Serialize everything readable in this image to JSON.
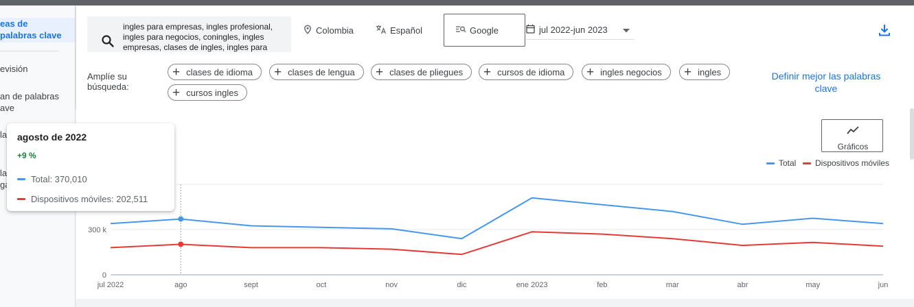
{
  "sidebar": {
    "items": [
      {
        "label": "eas de palabras clave",
        "active": true
      },
      {
        "label": "evisión",
        "active": false
      },
      {
        "label": "an de palabras ave",
        "active": false
      },
      {
        "label": "la",
        "active": false
      },
      {
        "label": "la ga",
        "active": false
      }
    ]
  },
  "search": {
    "query": "ingles para empresas, ingles profesional, ingles para negocios, coningles, ingles empresas, clases de ingles, ingles para",
    "icon": "search-icon"
  },
  "filters": {
    "location": "Colombia",
    "language": "Español",
    "network": "Google",
    "date_range": "jul 2022-jun 2023"
  },
  "expand": {
    "label": "Amplíe su búsqueda:",
    "chips": [
      "clases de idioma",
      "clases de lengua",
      "clases de pliegues",
      "cursos de idioma",
      "ingles negocios",
      "ingles",
      "cursos ingles"
    ]
  },
  "refine_link": "Definir mejor las palabras clave",
  "charts_button": "Gráficos",
  "legend": {
    "total": "Total",
    "mobile": "Dispositivos móviles"
  },
  "colors": {
    "total": "#4696ec",
    "mobile": "#e53935",
    "accent": "#1a73e8"
  },
  "tooltip": {
    "title": "agosto de 2022",
    "change": "+9 %",
    "total": "Total: 370,010",
    "mobile": "Dispositivos móviles: 202,511"
  },
  "chart_data": {
    "type": "line",
    "categories": [
      "jul 2022",
      "ago",
      "sept",
      "oct",
      "nov",
      "dic",
      "ene 2023",
      "feb",
      "mar",
      "abr",
      "may",
      "jun"
    ],
    "series": [
      {
        "name": "Total",
        "values": [
          340000,
          370010,
          325000,
          315000,
          305000,
          240000,
          510000,
          465000,
          420000,
          335000,
          375000,
          340000
        ]
      },
      {
        "name": "Dispositivos móviles",
        "values": [
          180000,
          202511,
          180000,
          180000,
          170000,
          135000,
          285000,
          270000,
          240000,
          195000,
          215000,
          190000
        ]
      }
    ],
    "y_ticks": [
      {
        "value": 0,
        "label": "0"
      },
      {
        "value": 300000,
        "label": "300 k"
      }
    ],
    "ylim": [
      0,
      600000
    ],
    "highlight_index": 1,
    "grid": true,
    "legend_position": "top-right"
  }
}
